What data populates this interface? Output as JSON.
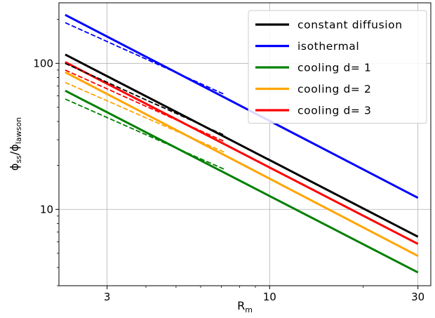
{
  "chart_data": {
    "type": "line",
    "xscale": "log",
    "yscale": "log",
    "xlim": [
      2.1,
      33
    ],
    "ylim": [
      3,
      260
    ],
    "grid": true,
    "legend_placement": "top-right",
    "xlabel": "R",
    "xlabel_sub": "m",
    "ylabel_main": "ϕ",
    "ylabel_sub1": "ss",
    "ylabel_mid": "/ϕ",
    "ylabel_sub2": "lawson",
    "x_major_ticks": [
      {
        "value": 3,
        "label": "3"
      },
      {
        "value": 10,
        "label": "10"
      },
      {
        "value": 30,
        "label": "30"
      }
    ],
    "y_major_ticks": [
      {
        "value": 10,
        "label": "10"
      },
      {
        "value": 100,
        "label": "100"
      }
    ],
    "series": [
      {
        "name": "constant diffusion",
        "color": "#000000",
        "style": "solid",
        "in_legend": true,
        "x": [
          2.2,
          30
        ],
        "y": [
          115,
          6.5
        ]
      },
      {
        "name": "isothermal",
        "color": "#0000ff",
        "style": "solid",
        "in_legend": true,
        "x": [
          2.2,
          30
        ],
        "y": [
          215,
          12
        ]
      },
      {
        "name": "cooling d= 1",
        "color": "#008000",
        "style": "solid",
        "in_legend": true,
        "x": [
          2.2,
          30
        ],
        "y": [
          65,
          3.7
        ]
      },
      {
        "name": "cooling d= 2",
        "color": "#ffa500",
        "style": "solid",
        "in_legend": true,
        "x": [
          2.2,
          30
        ],
        "y": [
          87,
          4.8
        ]
      },
      {
        "name": "cooling d= 3",
        "color": "#ff0000",
        "style": "solid",
        "in_legend": true,
        "x": [
          2.2,
          30
        ],
        "y": [
          102,
          5.8
        ]
      },
      {
        "name": "",
        "color": "#000000",
        "style": "dashed",
        "in_legend": false,
        "x": [
          2.2,
          7.2
        ],
        "y": [
          100,
          32
        ]
      },
      {
        "name": "",
        "color": "#0000ff",
        "style": "dashed",
        "in_legend": false,
        "x": [
          2.2,
          7.2
        ],
        "y": [
          190,
          61
        ]
      },
      {
        "name": "",
        "color": "#008000",
        "style": "dashed",
        "in_legend": false,
        "x": [
          2.2,
          7.2
        ],
        "y": [
          57,
          18.7
        ]
      },
      {
        "name": "",
        "color": "#ffa500",
        "style": "dashed",
        "in_legend": false,
        "x": [
          2.2,
          7.2
        ],
        "y": [
          74,
          24.5
        ]
      },
      {
        "name": "",
        "color": "#ff0000",
        "style": "dashed",
        "in_legend": false,
        "x": [
          2.2,
          7.2
        ],
        "y": [
          90,
          29
        ]
      }
    ]
  }
}
